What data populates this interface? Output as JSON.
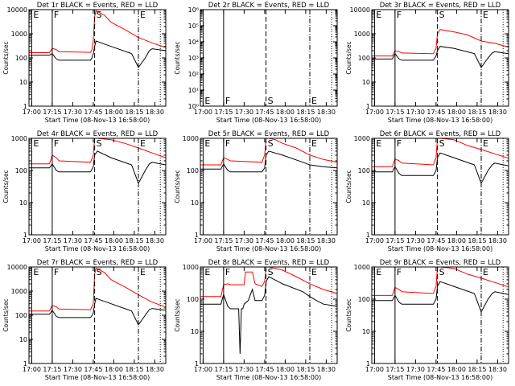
{
  "figure": {
    "type": "grid-of-line-plots",
    "x_tick_labels": [
      "17:00",
      "17:15",
      "17:30",
      "17:45",
      "18:00",
      "18:15",
      "18:30"
    ],
    "x_axis_label": "Start Time (08-Nov-13 16:58:00)",
    "y_axis_label": "Counts/sec",
    "y_tick_labels": [
      "1",
      "10",
      "100",
      "1000",
      "10000"
    ],
    "series_colors": {
      "events": "#000000",
      "lld": "#ff0000"
    },
    "event_markers": [
      "E",
      "F",
      "S",
      "E"
    ]
  },
  "chart_data": [
    {
      "type": "line",
      "title": "Det 1r BLACK = Events, RED = LLD",
      "xlim_min": [
        0,
        100
      ],
      "ylim": [
        1,
        10000
      ],
      "ylog": true,
      "marker_times_min": [
        2,
        17,
        48,
        80
      ],
      "marker_labels": [
        "E",
        "F",
        "S",
        "E"
      ],
      "series": [
        {
          "name": "Events",
          "color": "#000000",
          "x": [
            0,
            15,
            16,
            17,
            20,
            22,
            45,
            46,
            47,
            48,
            49,
            60,
            75,
            80,
            85,
            88,
            90,
            100
          ],
          "y": [
            130,
            130,
            140,
            150,
            90,
            80,
            80,
            100,
            150,
            300,
            500,
            300,
            150,
            40,
            100,
            200,
            240,
            200
          ]
        },
        {
          "name": "LLD",
          "color": "#ff0000",
          "x": [
            0,
            15,
            16,
            17,
            20,
            22,
            45,
            46,
            47,
            48,
            49,
            55,
            60,
            70,
            80,
            90,
            100
          ],
          "y": [
            165,
            165,
            200,
            250,
            220,
            180,
            170,
            220,
            500,
            5000,
            9000,
            6000,
            3000,
            1500,
            700,
            420,
            270
          ]
        }
      ]
    },
    {
      "type": "line",
      "title": "Det 2r BLACK = Events, RED = LLD",
      "xlim_min": [
        0,
        100
      ],
      "ylim": [
        1,
        1000000
      ],
      "ylog": true,
      "y_tick_labels": [
        "10⁰",
        "10¹",
        "10²",
        "10³",
        "10⁴",
        "10⁵",
        "10⁶"
      ],
      "marker_times_min": [
        2,
        17,
        48,
        80
      ],
      "marker_labels": [
        "E",
        "F",
        "S",
        "E"
      ],
      "series": []
    },
    {
      "type": "line",
      "title": "Det 3r BLACK = Events, RED = LLD",
      "xlim_min": [
        0,
        100
      ],
      "ylim": [
        1,
        10000
      ],
      "ylog": true,
      "marker_times_min": [
        2,
        17,
        48,
        80
      ],
      "marker_labels": [
        "E",
        "F",
        "S",
        "E"
      ],
      "series": [
        {
          "name": "Events",
          "color": "#000000",
          "x": [
            0,
            15,
            17,
            20,
            22,
            45,
            47,
            48,
            50,
            60,
            75,
            80,
            85,
            88,
            90,
            100
          ],
          "y": [
            90,
            90,
            150,
            90,
            80,
            80,
            120,
            200,
            300,
            250,
            150,
            40,
            100,
            160,
            180,
            150
          ]
        },
        {
          "name": "LLD",
          "color": "#ff0000",
          "x": [
            0,
            15,
            17,
            20,
            22,
            45,
            47,
            48,
            50,
            60,
            70,
            80,
            90,
            100
          ],
          "y": [
            120,
            120,
            200,
            180,
            160,
            150,
            250,
            1000,
            1500,
            1200,
            900,
            500,
            400,
            280
          ]
        }
      ]
    },
    {
      "type": "line",
      "title": "Det 4r BLACK = Events, RED = LLD",
      "xlim_min": [
        0,
        100
      ],
      "ylim": [
        1,
        1000
      ],
      "ylog": true,
      "y_tick_labels": [
        "1",
        "10",
        "100",
        "1000"
      ],
      "marker_times_min": [
        2,
        17,
        48,
        80
      ],
      "marker_labels": [
        "E",
        "F",
        "S",
        "E"
      ],
      "series": [
        {
          "name": "Events",
          "color": "#000000",
          "x": [
            0,
            15,
            17,
            20,
            22,
            45,
            47,
            48,
            50,
            60,
            75,
            80,
            85,
            88,
            90,
            100
          ],
          "y": [
            120,
            120,
            160,
            100,
            90,
            90,
            130,
            300,
            400,
            250,
            150,
            40,
            100,
            160,
            180,
            150
          ]
        },
        {
          "name": "LLD",
          "color": "#ff0000",
          "x": [
            0,
            15,
            17,
            20,
            22,
            45,
            47,
            48,
            50,
            60,
            70,
            80,
            90,
            100
          ],
          "y": [
            160,
            160,
            300,
            250,
            200,
            180,
            300,
            1000,
            1000,
            900,
            700,
            500,
            350,
            250
          ]
        }
      ]
    },
    {
      "type": "line",
      "title": "Det 5r BLACK = Events, RED = LLD",
      "xlim_min": [
        0,
        100
      ],
      "ylim": [
        1,
        1000
      ],
      "ylog": true,
      "y_tick_labels": [
        "1",
        "10",
        "100",
        "1000"
      ],
      "marker_times_min": [
        2,
        17,
        48,
        80
      ],
      "marker_labels": [
        "E",
        "F",
        "S",
        "E"
      ],
      "series": [
        {
          "name": "Events",
          "color": "#000000",
          "x": [
            0,
            15,
            17,
            20,
            22,
            45,
            47,
            48,
            50,
            60,
            75,
            80,
            85,
            90,
            100
          ],
          "y": [
            110,
            110,
            160,
            100,
            90,
            90,
            120,
            300,
            400,
            300,
            180,
            150,
            140,
            130,
            120
          ]
        },
        {
          "name": "LLD",
          "color": "#ff0000",
          "x": [
            0,
            15,
            17,
            20,
            22,
            45,
            47,
            48,
            50,
            55,
            60,
            70,
            80,
            90,
            100
          ],
          "y": [
            150,
            150,
            250,
            220,
            200,
            180,
            300,
            1000,
            1000,
            900,
            700,
            500,
            300,
            220,
            180
          ]
        }
      ]
    },
    {
      "type": "line",
      "title": "Det 6r BLACK = Events, RED = LLD",
      "xlim_min": [
        0,
        100
      ],
      "ylim": [
        1,
        1000
      ],
      "ylog": true,
      "y_tick_labels": [
        "1",
        "10",
        "100",
        "1000"
      ],
      "marker_times_min": [
        2,
        17,
        48,
        80
      ],
      "marker_labels": [
        "E",
        "F",
        "S",
        "E"
      ],
      "series": [
        {
          "name": "Events",
          "color": "#000000",
          "x": [
            0,
            15,
            17,
            20,
            22,
            45,
            47,
            48,
            50,
            60,
            75,
            80,
            85,
            88,
            90,
            100
          ],
          "y": [
            90,
            90,
            130,
            80,
            70,
            70,
            100,
            250,
            350,
            250,
            150,
            40,
            100,
            150,
            170,
            140
          ]
        },
        {
          "name": "LLD",
          "color": "#ff0000",
          "x": [
            0,
            15,
            17,
            20,
            22,
            45,
            47,
            48,
            50,
            60,
            70,
            80,
            90,
            100
          ],
          "y": [
            130,
            130,
            230,
            200,
            170,
            150,
            250,
            1000,
            1000,
            900,
            600,
            450,
            330,
            240
          ]
        }
      ]
    },
    {
      "type": "line",
      "title": "Det 7r BLACK = Events, RED = LLD",
      "xlim_min": [
        0,
        100
      ],
      "ylim": [
        1,
        10000
      ],
      "ylog": true,
      "marker_times_min": [
        2,
        17,
        48,
        80
      ],
      "marker_labels": [
        "E",
        "F",
        "S",
        "E"
      ],
      "series": [
        {
          "name": "Events",
          "color": "#000000",
          "x": [
            0,
            15,
            17,
            20,
            22,
            45,
            47,
            48,
            49,
            60,
            75,
            80,
            85,
            88,
            90,
            100
          ],
          "y": [
            110,
            110,
            160,
            90,
            80,
            80,
            120,
            300,
            500,
            300,
            150,
            40,
            100,
            170,
            190,
            160
          ]
        },
        {
          "name": "LLD",
          "color": "#ff0000",
          "x": [
            0,
            15,
            17,
            20,
            22,
            45,
            47,
            48,
            49,
            55,
            60,
            70,
            80,
            90,
            100
          ],
          "y": [
            150,
            150,
            260,
            220,
            180,
            170,
            300,
            5000,
            9000,
            6000,
            3000,
            1500,
            700,
            350,
            220
          ]
        }
      ]
    },
    {
      "type": "line",
      "title": "Det 8r BLACK = Events, RED = LLD",
      "xlim_min": [
        0,
        100
      ],
      "ylim": [
        1,
        1000
      ],
      "ylog": true,
      "y_tick_labels": [
        "1",
        "10",
        "100",
        "1000"
      ],
      "marker_times_min": [
        2,
        17,
        48,
        80
      ],
      "marker_labels": [
        "E",
        "F",
        "S",
        "E"
      ],
      "series": [
        {
          "name": "Events",
          "color": "#000000",
          "x": [
            0,
            15,
            17,
            20,
            22,
            28,
            29,
            30,
            31,
            32,
            35,
            38,
            40,
            45,
            47,
            48,
            50,
            60,
            75,
            80,
            85,
            90,
            100
          ],
          "y": [
            70,
            70,
            140,
            60,
            50,
            50,
            2,
            50,
            50,
            70,
            90,
            200,
            90,
            90,
            130,
            350,
            500,
            300,
            170,
            120,
            90,
            70,
            60
          ]
        },
        {
          "name": "LLD",
          "color": "#ff0000",
          "x": [
            0,
            15,
            17,
            20,
            22,
            32,
            33,
            38,
            40,
            45,
            47,
            48,
            50,
            60,
            70,
            80,
            90,
            100
          ],
          "y": [
            120,
            120,
            280,
            300,
            280,
            280,
            700,
            700,
            300,
            250,
            350,
            1000,
            1000,
            800,
            500,
            300,
            200,
            150
          ]
        }
      ]
    },
    {
      "type": "line",
      "title": "Det 9r BLACK = Events, RED = LLD",
      "xlim_min": [
        0,
        100
      ],
      "ylim": [
        1,
        1000
      ],
      "ylog": true,
      "y_tick_labels": [
        "1",
        "10",
        "100",
        "1000"
      ],
      "marker_times_min": [
        2,
        17,
        48,
        80
      ],
      "marker_labels": [
        "E",
        "F",
        "S",
        "E"
      ],
      "series": [
        {
          "name": "Events",
          "color": "#000000",
          "x": [
            0,
            15,
            17,
            20,
            22,
            45,
            47,
            48,
            50,
            60,
            75,
            80,
            85,
            88,
            90,
            100
          ],
          "y": [
            90,
            90,
            130,
            80,
            70,
            70,
            100,
            250,
            350,
            250,
            150,
            40,
            100,
            150,
            170,
            140
          ]
        },
        {
          "name": "LLD",
          "color": "#ff0000",
          "x": [
            0,
            15,
            17,
            20,
            22,
            45,
            47,
            48,
            50,
            60,
            70,
            80,
            90,
            100
          ],
          "y": [
            130,
            130,
            230,
            200,
            170,
            150,
            250,
            1000,
            1000,
            900,
            600,
            450,
            330,
            240
          ]
        }
      ]
    }
  ]
}
